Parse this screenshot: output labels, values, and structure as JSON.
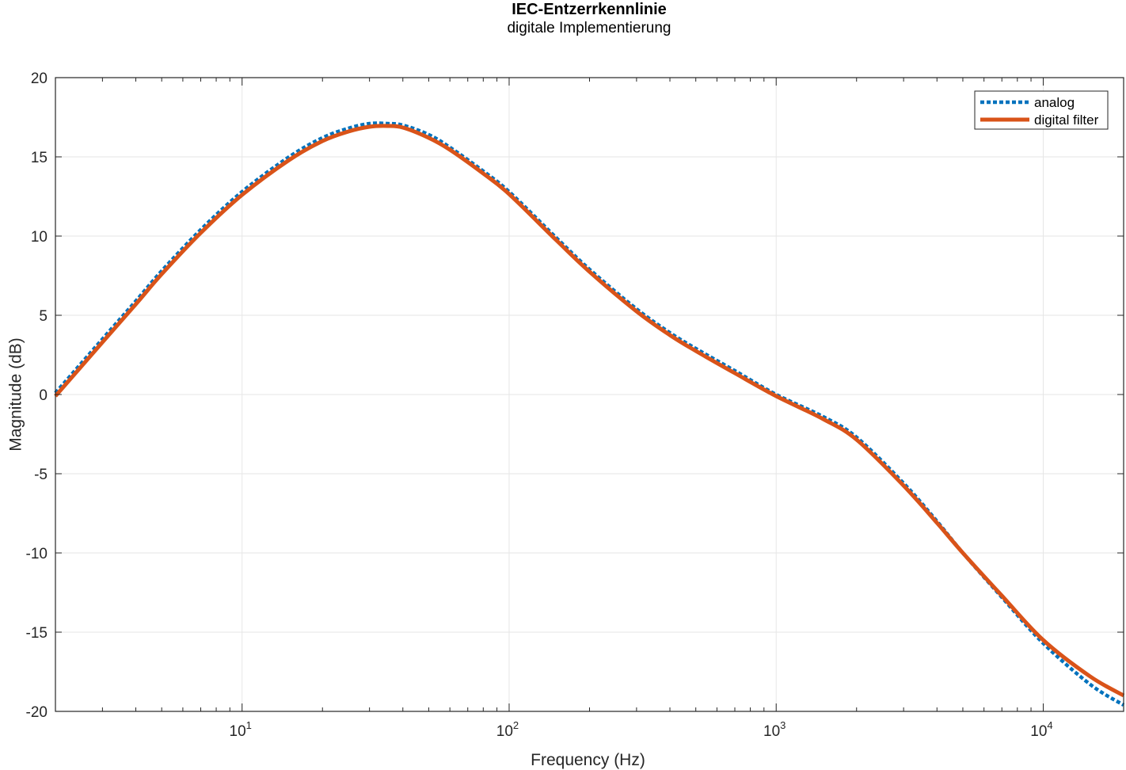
{
  "chart_data": {
    "type": "line",
    "title": "IEC-Entzerrkennlinie",
    "subtitle": "digitale Implementierung",
    "xlabel": "Frequency (Hz)",
    "ylabel": "Magnitude (dB)",
    "xscale": "log",
    "xlim": [
      2,
      20000
    ],
    "ylim": [
      -20,
      20
    ],
    "yticks": [
      -20,
      -15,
      -10,
      -5,
      0,
      5,
      10,
      15,
      20
    ],
    "ytick_labels": [
      "-20",
      "-15",
      "-10",
      "-5",
      "0",
      "5",
      "10",
      "15",
      "20"
    ],
    "xticks": [
      10,
      100,
      1000,
      10000
    ],
    "xtick_labels": [
      {
        "base": "10",
        "exp": "1"
      },
      {
        "base": "10",
        "exp": "2"
      },
      {
        "base": "10",
        "exp": "3"
      },
      {
        "base": "10",
        "exp": "4"
      }
    ],
    "grid": true,
    "legend_position": "top-right",
    "series": [
      {
        "name": "analog",
        "color": "#0072BD",
        "style": "dotted",
        "x": [
          2,
          3,
          4,
          5,
          7,
          10,
          15,
          20,
          25,
          30,
          35,
          40,
          50,
          60,
          80,
          100,
          150,
          200,
          300,
          400,
          500,
          700,
          1000,
          1500,
          2000,
          3000,
          4000,
          5000,
          7000,
          10000,
          15000,
          20000
        ],
        "y": [
          0.1,
          3.5,
          5.9,
          7.8,
          10.4,
          12.8,
          15.0,
          16.2,
          16.8,
          17.1,
          17.1,
          17.0,
          16.4,
          15.6,
          14.1,
          12.8,
          9.9,
          7.9,
          5.4,
          3.9,
          2.9,
          1.5,
          0.0,
          -1.4,
          -2.7,
          -5.6,
          -8.0,
          -10.0,
          -12.8,
          -15.7,
          -18.3,
          -19.6
        ]
      },
      {
        "name": "digital filter",
        "color": "#D95319",
        "style": "solid",
        "x": [
          2,
          3,
          4,
          5,
          7,
          10,
          15,
          20,
          25,
          30,
          35,
          40,
          50,
          60,
          80,
          100,
          150,
          200,
          300,
          400,
          500,
          700,
          1000,
          1500,
          2000,
          3000,
          4000,
          5000,
          7000,
          10000,
          15000,
          20000
        ],
        "y": [
          -0.1,
          3.3,
          5.7,
          7.6,
          10.2,
          12.6,
          14.8,
          16.0,
          16.6,
          16.9,
          16.95,
          16.85,
          16.2,
          15.45,
          13.95,
          12.65,
          9.75,
          7.75,
          5.25,
          3.75,
          2.75,
          1.35,
          -0.1,
          -1.55,
          -2.85,
          -5.75,
          -8.1,
          -10.0,
          -12.7,
          -15.5,
          -17.8,
          -19.0
        ]
      }
    ]
  }
}
